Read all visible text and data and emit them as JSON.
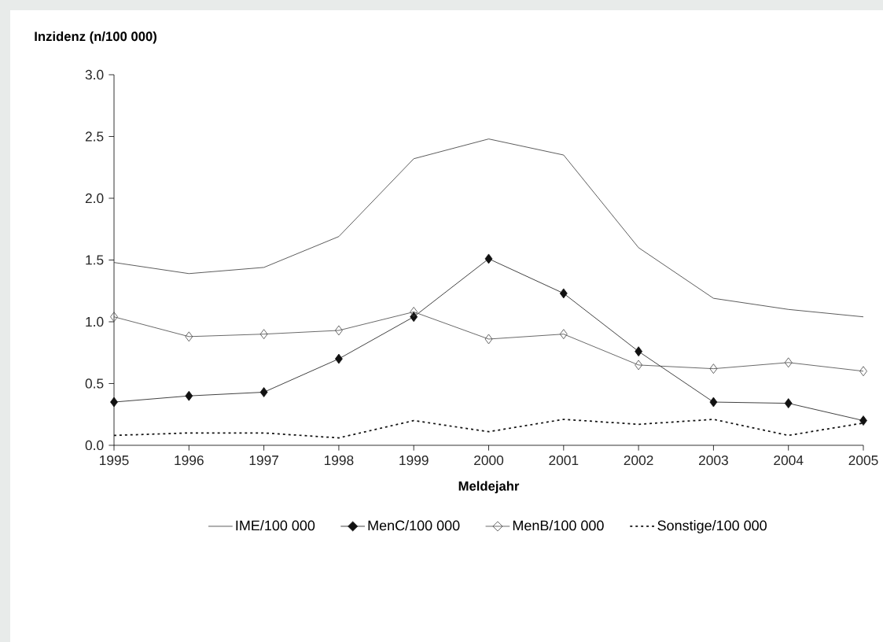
{
  "chart_data": {
    "type": "line",
    "ylabel": "Inzidenz (n/100 000)",
    "xlabel": "Meldejahr",
    "x": [
      1995,
      1996,
      1997,
      1998,
      1999,
      2000,
      2001,
      2002,
      2003,
      2004,
      2005
    ],
    "xlim": [
      1995,
      2005
    ],
    "xticks": [
      1995,
      1996,
      1997,
      1998,
      1999,
      2000,
      2001,
      2002,
      2003,
      2004,
      2005
    ],
    "ylim": [
      0,
      3
    ],
    "yticks": [
      {
        "value": 0,
        "label": "0.0"
      },
      {
        "value": 0.5,
        "label": "0.5"
      },
      {
        "value": 1,
        "label": "1.0"
      },
      {
        "value": 1.5,
        "label": "1.5"
      },
      {
        "value": 2,
        "label": "2.0"
      },
      {
        "value": 2.5,
        "label": "2.5"
      },
      {
        "value": 3,
        "label": "3.0"
      }
    ],
    "legend": "bottom",
    "grid": false,
    "series": [
      {
        "name": "IME/100 000",
        "color": "#333333",
        "marker": "none",
        "line_style": "solid",
        "values": [
          1.48,
          1.39,
          1.44,
          1.69,
          2.32,
          2.48,
          2.35,
          1.6,
          1.19,
          1.1,
          1.04
        ]
      },
      {
        "name": "MenC/100 000",
        "color": "#111111",
        "marker": "diamond",
        "line_style": "solid",
        "values": [
          0.35,
          0.4,
          0.43,
          0.7,
          1.04,
          1.51,
          1.23,
          0.76,
          0.35,
          0.34,
          0.2
        ]
      },
      {
        "name": "MenB/100 000",
        "color": "#444444",
        "marker": "diamond-open",
        "line_style": "solid",
        "values": [
          1.04,
          0.88,
          0.9,
          0.93,
          1.08,
          0.86,
          0.9,
          0.65,
          0.62,
          0.67,
          0.6
        ]
      },
      {
        "name": "Sonstige/100 000",
        "color": "#111111",
        "marker": "none",
        "line_style": "dotted",
        "values": [
          0.08,
          0.1,
          0.1,
          0.06,
          0.2,
          0.11,
          0.21,
          0.17,
          0.21,
          0.08,
          0.18
        ]
      }
    ]
  }
}
